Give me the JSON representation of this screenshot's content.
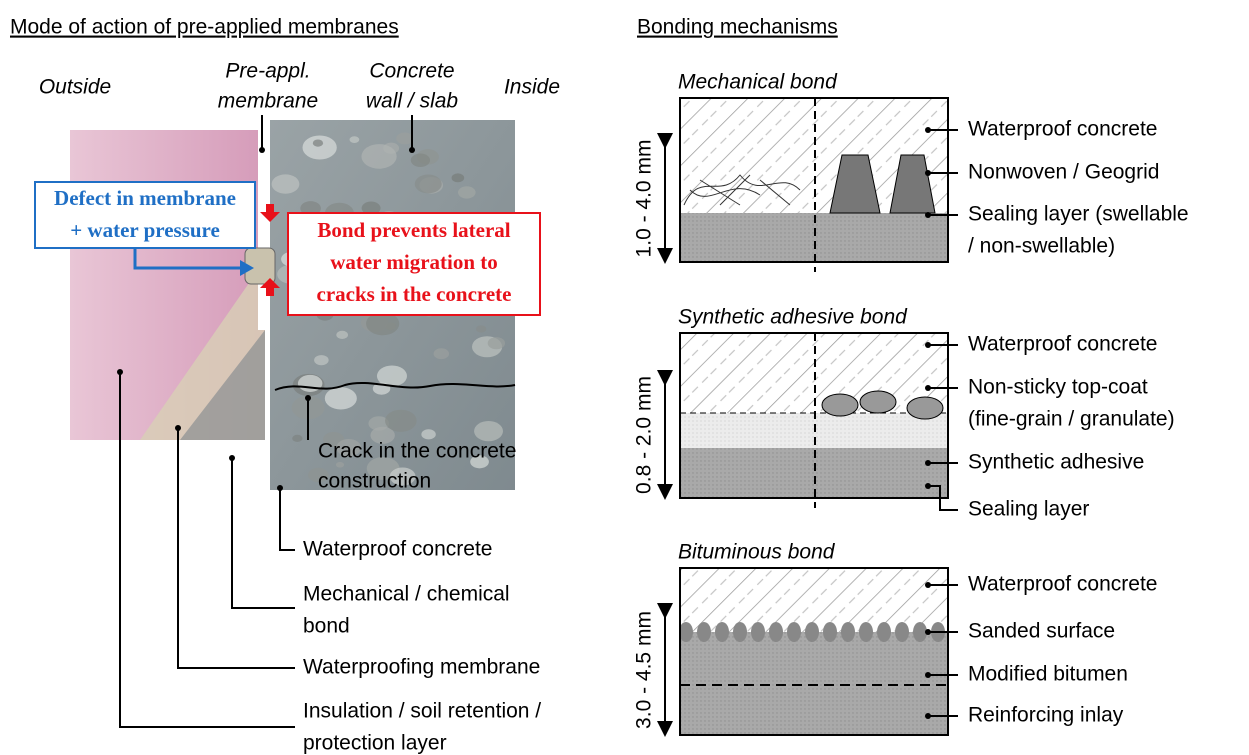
{
  "left": {
    "title": "Mode of action of pre-applied membranes",
    "zones": [
      [
        "Outside"
      ],
      [
        "Pre-appl.",
        "membrane"
      ],
      [
        "Concrete",
        "wall / slab"
      ],
      [
        "Inside"
      ]
    ],
    "defect": [
      "Defect in membrane",
      "+ water pressure"
    ],
    "bond": [
      "Bond prevents lateral",
      "water migration to",
      "cracks in the concrete"
    ],
    "crack": [
      "Crack in the concrete",
      "construction"
    ],
    "layers": [
      [
        "Waterproof concrete"
      ],
      [
        "Mechanical / chemical",
        "bond"
      ],
      [
        "Waterproofing membrane"
      ],
      [
        "Insulation / soil retention /",
        "protection layer"
      ]
    ]
  },
  "right": {
    "title": "Bonding mechanisms",
    "panels": [
      {
        "title": "Mechanical bond",
        "thickness": "1.0 - 4.0 mm",
        "labels": [
          [
            "Waterproof concrete"
          ],
          [
            "Nonwoven / Geogrid"
          ],
          [
            "Sealing layer (swellable",
            "/ non-swellable)"
          ]
        ]
      },
      {
        "title": "Synthetic adhesive bond",
        "thickness": "0.8 - 2.0 mm",
        "labels": [
          [
            "Waterproof concrete"
          ],
          [
            "Non-sticky top-coat",
            "(fine-grain / granulate)"
          ],
          [
            "Synthetic adhesive"
          ],
          [
            "Sealing layer"
          ]
        ]
      },
      {
        "title": "Bituminous bond",
        "thickness": "3.0 - 4.5 mm",
        "labels": [
          [
            "Waterproof concrete"
          ],
          [
            "Sanded surface"
          ],
          [
            "Modified bitumen"
          ],
          [
            "Reinforcing inlay"
          ]
        ]
      }
    ]
  }
}
